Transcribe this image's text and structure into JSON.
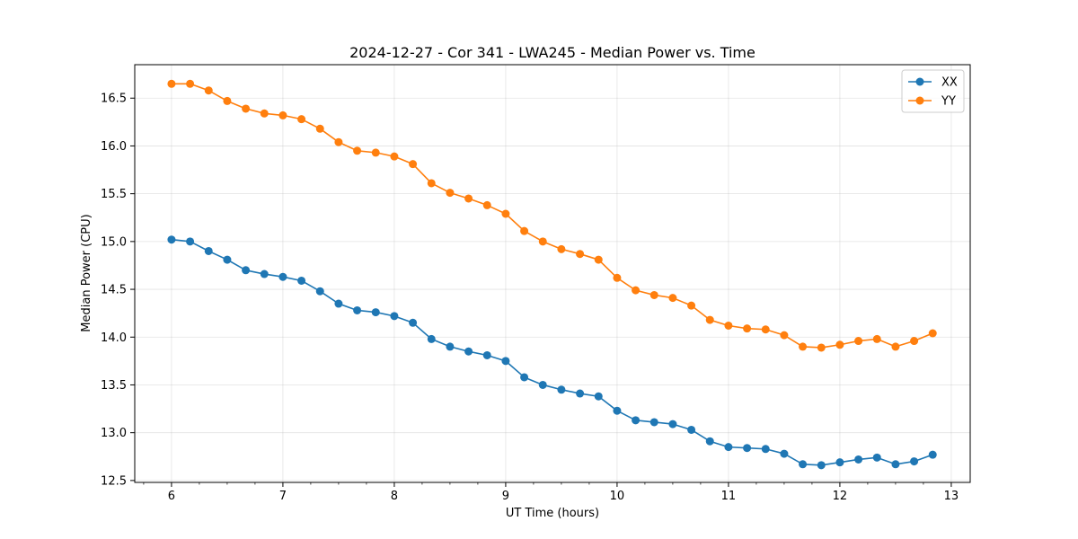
{
  "chart_data": {
    "type": "line",
    "title": "2024-12-27 - Cor 341 - LWA245 - Median Power vs. Time",
    "xlabel": "UT Time (hours)",
    "ylabel": "Median Power (CPU)",
    "xlim": [
      5.67,
      13.17
    ],
    "ylim": [
      12.48,
      16.85
    ],
    "xticks": [
      6,
      7,
      8,
      9,
      10,
      11,
      12,
      13
    ],
    "xtick_labels": [
      "6",
      "7",
      "8",
      "9",
      "10",
      "11",
      "12",
      "13"
    ],
    "xminor_step": 0.25,
    "yticks": [
      12.5,
      13.0,
      13.5,
      14.0,
      14.5,
      15.0,
      15.5,
      16.0,
      16.5
    ],
    "ytick_labels": [
      "12.5",
      "13.0",
      "13.5",
      "14.0",
      "14.5",
      "15.0",
      "15.5",
      "16.0",
      "16.5"
    ],
    "grid": true,
    "legend_position": "top-right",
    "x": [
      6.0,
      6.1667,
      6.3333,
      6.5,
      6.6667,
      6.8333,
      7.0,
      7.1667,
      7.3333,
      7.5,
      7.6667,
      7.8333,
      8.0,
      8.1667,
      8.3333,
      8.5,
      8.6667,
      8.8333,
      9.0,
      9.1667,
      9.3333,
      9.5,
      9.6667,
      9.8333,
      10.0,
      10.1667,
      10.3333,
      10.5,
      10.6667,
      10.8333,
      11.0,
      11.1667,
      11.3333,
      11.5,
      11.6667,
      11.8333,
      12.0,
      12.1667,
      12.3333,
      12.5,
      12.6667,
      12.8333
    ],
    "series": [
      {
        "name": "XX",
        "color": "#1f77b4",
        "values": [
          15.02,
          15.0,
          14.9,
          14.81,
          14.7,
          14.66,
          14.63,
          14.59,
          14.48,
          14.35,
          14.28,
          14.26,
          14.22,
          14.15,
          13.98,
          13.9,
          13.85,
          13.81,
          13.75,
          13.58,
          13.5,
          13.45,
          13.41,
          13.38,
          13.23,
          13.13,
          13.11,
          13.09,
          13.03,
          12.91,
          12.85,
          12.84,
          12.83,
          12.78,
          12.67,
          12.66,
          12.69,
          12.72,
          12.74,
          12.67,
          12.7,
          12.77
        ]
      },
      {
        "name": "YY",
        "color": "#ff7f0e",
        "values": [
          16.65,
          16.65,
          16.58,
          16.47,
          16.39,
          16.34,
          16.32,
          16.28,
          16.18,
          16.04,
          15.95,
          15.93,
          15.89,
          15.81,
          15.61,
          15.51,
          15.45,
          15.38,
          15.29,
          15.11,
          15.0,
          14.92,
          14.87,
          14.81,
          14.62,
          14.49,
          14.44,
          14.41,
          14.33,
          14.18,
          14.12,
          14.09,
          14.08,
          14.02,
          13.9,
          13.89,
          13.92,
          13.96,
          13.98,
          13.9,
          13.96,
          14.04
        ]
      }
    ]
  }
}
